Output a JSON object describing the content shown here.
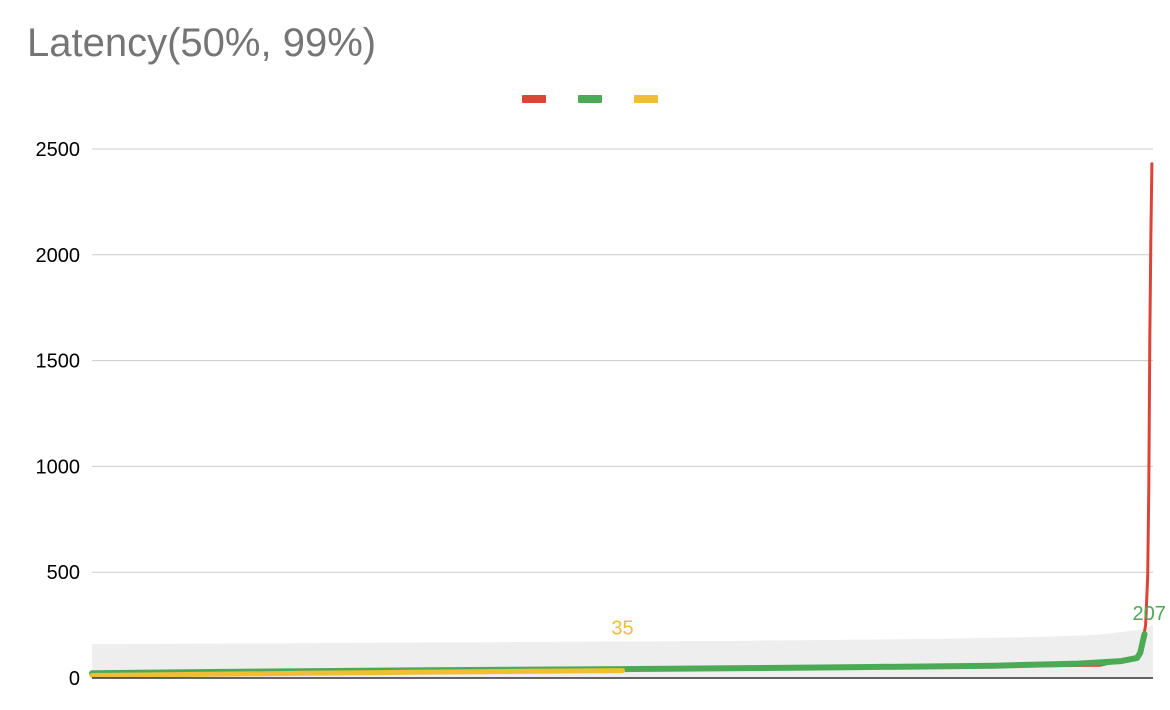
{
  "chart_data": {
    "type": "line",
    "title": "Latency(50%, 99%)",
    "xlabel": "",
    "ylabel": "",
    "ylim": [
      0,
      2500
    ],
    "yticks": [
      "0",
      "500",
      "1000",
      "1500",
      "2000",
      "2500"
    ],
    "grid": true,
    "legend": "top-center",
    "colors": {
      "red": "#db4437",
      "green": "#4caa55",
      "yellow": "#f0be33",
      "band": "#eeeeee",
      "grid": "#cccccc"
    },
    "x_count": 1000,
    "series": [
      {
        "key": "red",
        "points": [
          [
            0,
            22
          ],
          [
            950,
            60
          ],
          [
            985,
            100
          ],
          [
            990,
            160
          ],
          [
            993,
            250
          ],
          [
            995,
            480
          ],
          [
            996,
            900
          ],
          [
            997,
            1600
          ],
          [
            998,
            2100
          ],
          [
            999,
            2430
          ]
        ]
      },
      {
        "key": "green",
        "points": [
          [
            0,
            22
          ],
          [
            100,
            28
          ],
          [
            300,
            36
          ],
          [
            500,
            42
          ],
          [
            700,
            50
          ],
          [
            850,
            58
          ],
          [
            930,
            68
          ],
          [
            970,
            80
          ],
          [
            985,
            95
          ],
          [
            988,
            120
          ],
          [
            990,
            165
          ],
          [
            992,
            207
          ]
        ],
        "data_label": "207"
      },
      {
        "key": "yellow",
        "points": [
          [
            0,
            12
          ],
          [
            100,
            17
          ],
          [
            200,
            22
          ],
          [
            300,
            27
          ],
          [
            400,
            31
          ],
          [
            500,
            35
          ]
        ],
        "data_label": "35"
      }
    ],
    "band": {
      "upper": [
        [
          0,
          160
        ],
        [
          200,
          165
        ],
        [
          400,
          170
        ],
        [
          600,
          175
        ],
        [
          800,
          185
        ],
        [
          900,
          195
        ],
        [
          950,
          205
        ],
        [
          990,
          230
        ],
        [
          1000,
          250
        ]
      ],
      "lower": [
        [
          0,
          0
        ],
        [
          1000,
          0
        ]
      ]
    }
  }
}
